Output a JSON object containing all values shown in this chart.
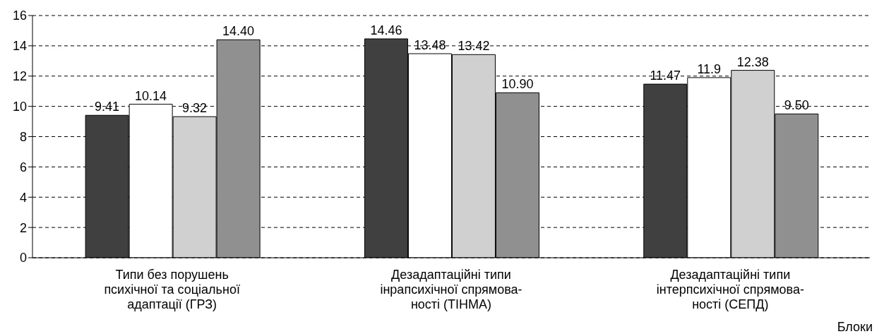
{
  "chart_data": {
    "type": "bar",
    "xlabel": "Блоки",
    "categories": [
      "Типи без порушень\nпсихічної та соціальної\nадаптації (ГРЗ)",
      "Дезадаптаційні типи\nінрапсихічної спрямова-\nності (ТІНМА)",
      "Дезадаптаційні типи\nінтерпсихічної спрямова-\nності (СЕПД)"
    ],
    "series": [
      {
        "color": "#404040",
        "values": [
          9.41,
          14.46,
          11.47
        ],
        "value_labels": [
          "9.41",
          "14.46",
          "11.47"
        ]
      },
      {
        "color": "#ffffff",
        "values": [
          10.14,
          13.48,
          11.9
        ],
        "value_labels": [
          "10.14",
          "13.48",
          "11.9"
        ]
      },
      {
        "color": "#d0d0d0",
        "values": [
          9.32,
          13.42,
          12.38
        ],
        "value_labels": [
          "9.32",
          "13.42",
          "12.38"
        ]
      },
      {
        "color": "#909090",
        "values": [
          14.4,
          10.9,
          9.5
        ],
        "value_labels": [
          "14.40",
          "10.90",
          "9.50"
        ]
      }
    ],
    "ylim": [
      0,
      16
    ],
    "yticks": [
      0,
      2,
      4,
      6,
      8,
      10,
      12,
      14,
      16
    ],
    "grid": "y",
    "legend": false
  }
}
